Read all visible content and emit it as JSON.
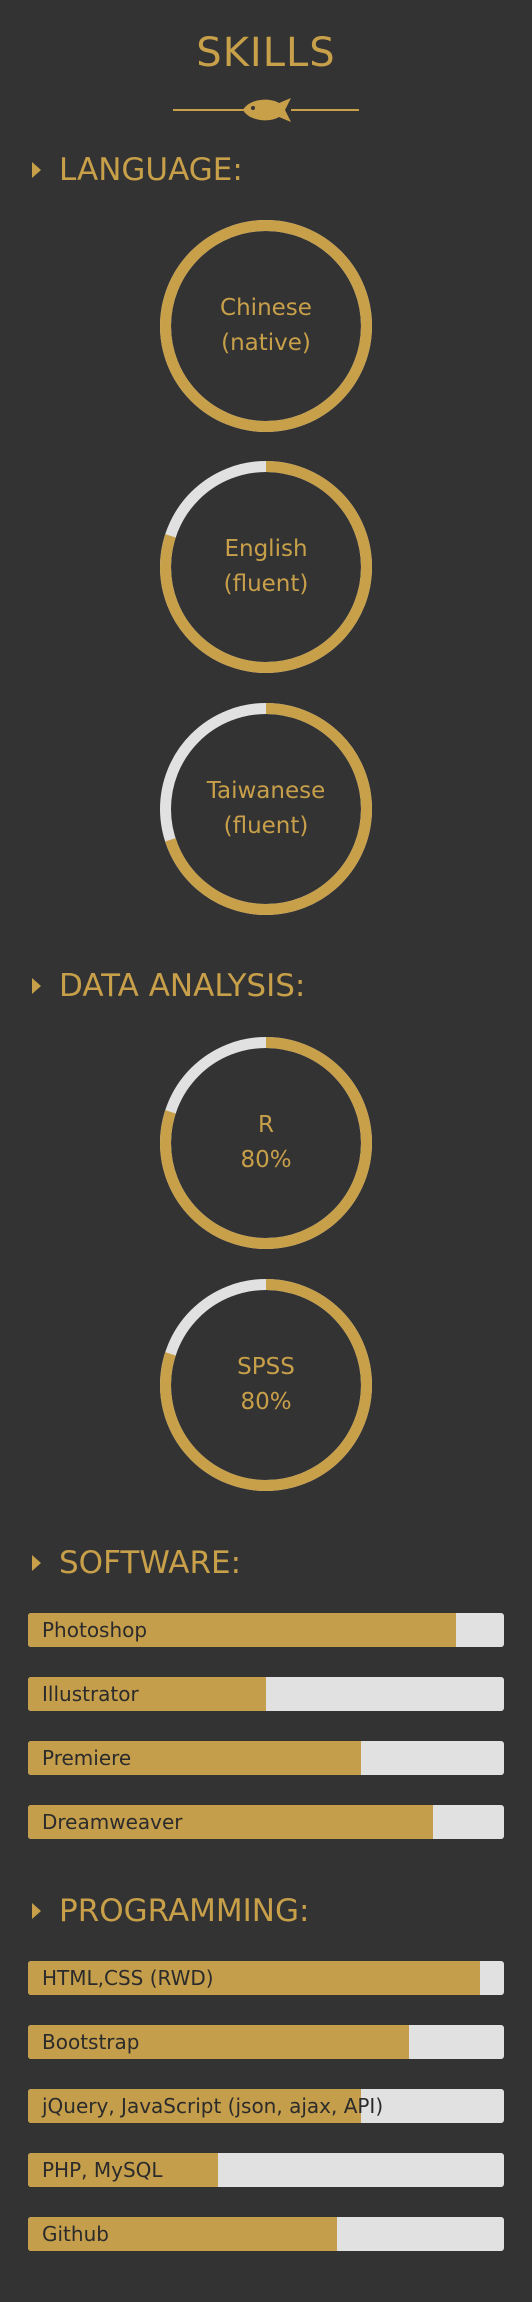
{
  "title": "SKILLS",
  "colors": {
    "background": "#333333",
    "accent": "#c8a04a",
    "track": "#e1e1e1",
    "bar_text": "#2b2b2b"
  },
  "sections": {
    "language": {
      "heading": "LANGUAGE:",
      "items": [
        {
          "line1": "Chinese",
          "line2": "(native)",
          "level": 1.0
        },
        {
          "line1": "English",
          "line2": "(fluent)",
          "level": 0.8
        },
        {
          "line1": "Taiwanese",
          "line2": "(fluent)",
          "level": 0.7
        }
      ]
    },
    "data_analysis": {
      "heading": "DATA ANALYSIS:",
      "items": [
        {
          "line1": "R",
          "line2": "80%",
          "level": 0.8
        },
        {
          "line1": "SPSS",
          "line2": "80%",
          "level": 0.8
        }
      ]
    },
    "software": {
      "heading": "SOFTWARE:",
      "items": [
        {
          "label": "Photoshop",
          "level": 0.9
        },
        {
          "label": "Illustrator",
          "level": 0.5
        },
        {
          "label": "Premiere",
          "level": 0.7
        },
        {
          "label": "Dreamweaver",
          "level": 0.85
        }
      ]
    },
    "programming": {
      "heading": "PROGRAMMING:",
      "items": [
        {
          "label": "HTML,CSS (RWD)",
          "level": 0.95
        },
        {
          "label": "Bootstrap",
          "level": 0.8
        },
        {
          "label": "jQuery, JavaScript (json, ajax, API)",
          "level": 0.7
        },
        {
          "label": "PHP, MySQL",
          "level": 0.4
        },
        {
          "label": "Github",
          "level": 0.65
        }
      ]
    }
  }
}
